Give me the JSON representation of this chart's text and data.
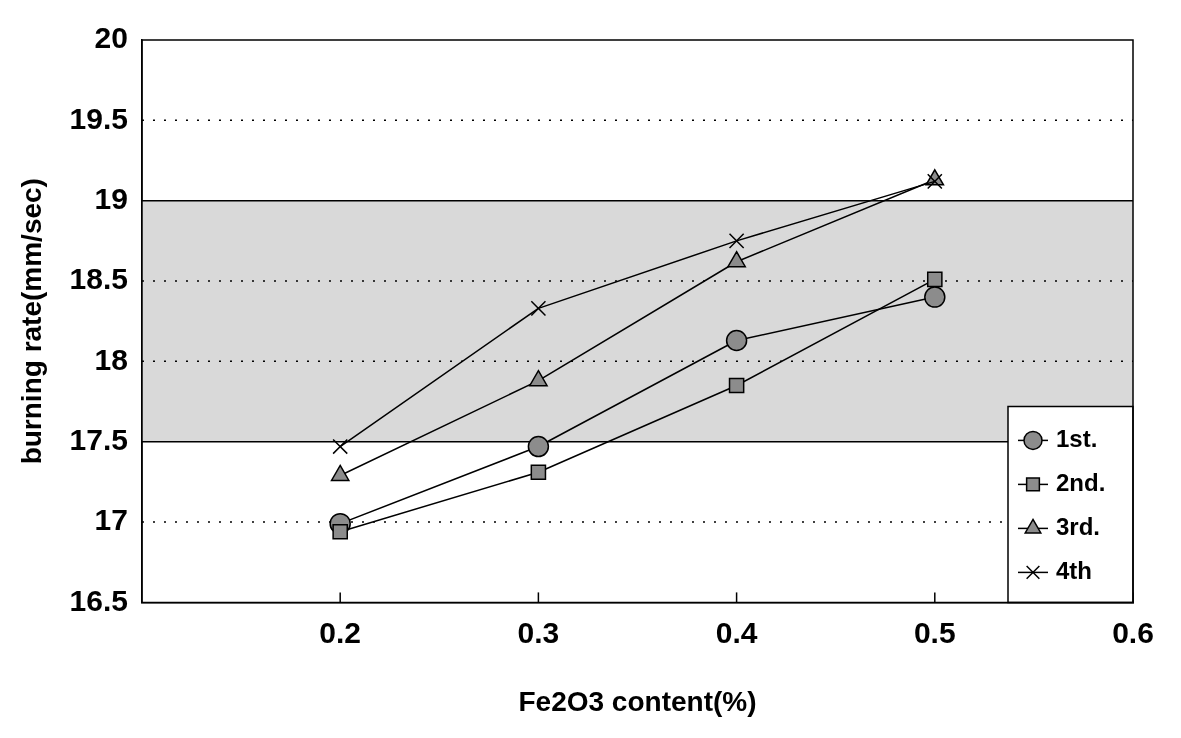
{
  "chart_data": {
    "type": "line",
    "xlabel": "Fe2O3 content(%)",
    "ylabel": "burning rate(mm/sec)",
    "x": [
      0.2,
      0.3,
      0.4,
      0.5
    ],
    "series": [
      {
        "name": "1st.",
        "color": "#000000",
        "marker": "circle",
        "values": [
          16.99,
          17.47,
          18.13,
          18.4
        ]
      },
      {
        "name": "2nd.",
        "color": "#000000",
        "marker": "square",
        "values": [
          16.94,
          17.31,
          17.85,
          18.51
        ]
      },
      {
        "name": "3rd.",
        "color": "#000000",
        "marker": "triangle",
        "values": [
          17.29,
          17.88,
          18.62,
          19.13
        ]
      },
      {
        "name": "4th",
        "color": "#000000",
        "marker": "cross",
        "values": [
          17.47,
          18.33,
          18.75,
          19.12
        ]
      }
    ],
    "xlim": [
      0.1,
      0.6
    ],
    "xticks": [
      0.2,
      0.3,
      0.4,
      0.5,
      0.6
    ],
    "ylim": [
      16.5,
      20
    ],
    "yticks": [
      16.5,
      17,
      17.5,
      18,
      18.5,
      19,
      19.5,
      20
    ],
    "bands": [
      {
        "axis": "y",
        "from": 17.5,
        "to": 19,
        "color": "#d9d9d9"
      }
    ],
    "grid": "y",
    "legend": "bottom right",
    "line_style": "solid"
  }
}
